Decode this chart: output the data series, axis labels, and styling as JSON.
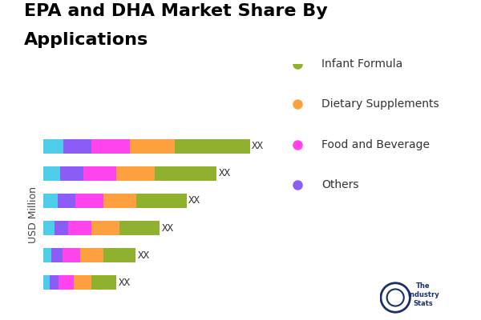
{
  "title_line1": "EPA and DHA Market Share By",
  "title_line2": "Applications",
  "ylabel": "USD Million",
  "legend_labels": [
    "Infant Formula",
    "Dietary Supplements",
    "Food and Beverage",
    "Others"
  ],
  "colors": {
    "cyan": "#4DCDE8",
    "purple": "#8B5CF6",
    "magenta": "#FF44EE",
    "orange": "#FFA040",
    "olive": "#90B030"
  },
  "segment_order": [
    "cyan",
    "purple",
    "magenta",
    "orange",
    "olive"
  ],
  "legend_colors": [
    "#90B030",
    "#FFA040",
    "#FF44EE",
    "#8B5CF6"
  ],
  "rows": [
    [
      2.0,
      2.8,
      3.8,
      4.5,
      7.5
    ],
    [
      1.7,
      2.3,
      3.3,
      3.8,
      6.2
    ],
    [
      1.4,
      1.8,
      2.8,
      3.3,
      5.0
    ],
    [
      1.1,
      1.4,
      2.3,
      2.8,
      4.0
    ],
    [
      0.8,
      1.1,
      1.8,
      2.3,
      3.2
    ],
    [
      0.6,
      0.9,
      1.5,
      1.8,
      2.5
    ]
  ],
  "bar_label": "XX",
  "background_color": "#FFFFFF",
  "title_fontsize": 16,
  "legend_fontsize": 10,
  "ylabel_fontsize": 9
}
